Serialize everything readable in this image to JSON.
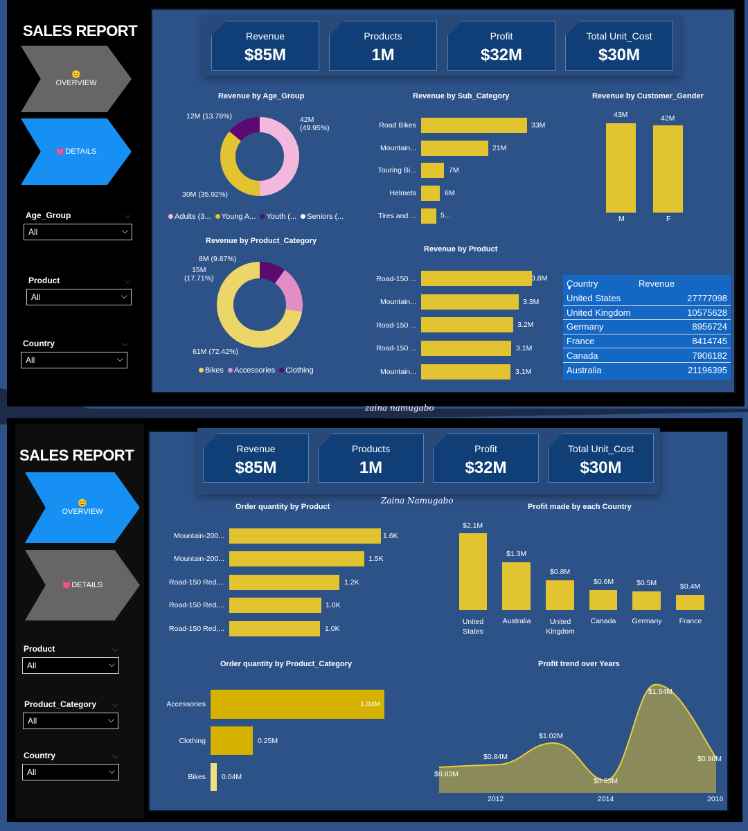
{
  "dashboard_1": {
    "title": "SALES REPORT",
    "nav": {
      "overview": {
        "emoji": "😊",
        "label": "OVERVIEW"
      },
      "details": {
        "emoji": "💓",
        "label": "DETAILS"
      }
    },
    "filters": [
      {
        "label": "Age_Group",
        "value": "All"
      },
      {
        "label": "Product",
        "value": "All"
      },
      {
        "label": "Country",
        "value": "All"
      }
    ],
    "kpis": [
      {
        "label": "Revenue",
        "value": "$85M"
      },
      {
        "label": "Products",
        "value": "1M"
      },
      {
        "label": "Profit",
        "value": "$32M"
      },
      {
        "label": "Total Unit_Cost",
        "value": "$30M"
      }
    ],
    "age_group_chart": {
      "title": "Revenue by Age_Group",
      "labels": {
        "adults": "42M\n(49.95%)",
        "young": "30M (35.92%)",
        "youth": "12M (13.78%)"
      },
      "legend": [
        "Adults (3...",
        "Young A...",
        "Youth (...",
        "Seniors (..."
      ]
    },
    "sub_category_chart": {
      "title": "Revenue by Sub_Category",
      "categories": [
        "Road Bikes",
        "Mountain...",
        "Touring Bi...",
        "Helmets",
        "Tires and ..."
      ],
      "value_labels": [
        "33M",
        "21M",
        "7M",
        "6M",
        "5..."
      ]
    },
    "gender_chart": {
      "title": "Revenue by Customer_Gender",
      "categories": [
        "M",
        "F"
      ],
      "value_labels": [
        "43M",
        "42M"
      ]
    },
    "product_category_chart": {
      "title": "Revenue by Product_Category",
      "labels": {
        "clothing": "8M (9.87%)",
        "accessories": "15M\n(17.71%)",
        "bikes": "61M (72.42%)"
      },
      "legend": [
        "Bikes",
        "Accessories",
        "Clothing"
      ]
    },
    "product_chart": {
      "title": "Revenue by Product",
      "categories": [
        "Road-150 ...",
        "Mountain...",
        "Road-150 ...",
        "Road-150 ...",
        "Mountain..."
      ],
      "value_labels": [
        "3.8M",
        "3.3M",
        "3.2M",
        "3.1M",
        "3.1M"
      ]
    },
    "country_table": {
      "headers": [
        "Country",
        "Revenue"
      ],
      "rows": [
        [
          "United States",
          "27777098"
        ],
        [
          "United Kingdom",
          "10575628"
        ],
        [
          "Germany",
          "8956724"
        ],
        [
          "France",
          "8414745"
        ],
        [
          "Canada",
          "7906182"
        ],
        [
          "Australia",
          "21196395"
        ]
      ]
    },
    "watermark": "zaina namugabo"
  },
  "dashboard_2": {
    "title": "SALES REPORT",
    "nav": {
      "overview": {
        "emoji": "😊",
        "label": "OVERVIEW"
      },
      "details": {
        "emoji": "💓",
        "label": "DETAILS"
      }
    },
    "filters": [
      {
        "label": "Product",
        "value": "All"
      },
      {
        "label": "Product_Category",
        "value": "All"
      },
      {
        "label": "Country",
        "value": "All"
      }
    ],
    "kpis": [
      {
        "label": "Revenue",
        "value": "$85M"
      },
      {
        "label": "Products",
        "value": "1M"
      },
      {
        "label": "Profit",
        "value": "$32M"
      },
      {
        "label": "Total Unit_Cost",
        "value": "$30M"
      }
    ],
    "watermark": "Zaina Namugabo",
    "order_qty_product": {
      "title": "Order quantity by Product",
      "categories": [
        "Mountain-200...",
        "Mountain-200...",
        "Road-150 Red,...",
        "Road-150 Red,...",
        "Road-150 Red,..."
      ],
      "value_labels": [
        "1.6K",
        "1.5K",
        "1.2K",
        "1.0K",
        "1.0K"
      ]
    },
    "profit_by_country": {
      "title": "Profit made by each Country",
      "categories": [
        "United\nStates",
        "Australia",
        "United\nKingdom",
        "Canada",
        "Germany",
        "France"
      ],
      "value_labels": [
        "$2.1M",
        "$1.3M",
        "$0.8M",
        "$0.6M",
        "$0.5M",
        "$0.4M"
      ]
    },
    "order_qty_category": {
      "title": "Order quantity by Product_Category",
      "categories": [
        "Accessories",
        "Clothing",
        "Bikes"
      ],
      "value_labels": [
        "1.04M",
        "0.25M",
        "0.04M"
      ]
    },
    "profit_trend": {
      "title": "Profit trend over Years",
      "x_ticks": [
        "2012",
        "2014",
        "2016"
      ],
      "point_labels": [
        "$0.83M",
        "$0.84M",
        "$1.02M",
        "$0.63M",
        "$1.54M",
        "$0.96M"
      ]
    }
  },
  "chart_data": [
    {
      "type": "pie",
      "title": "Revenue by Age_Group",
      "categories": [
        "Adults",
        "Young Adults",
        "Youth"
      ],
      "values": [
        49.95,
        35.92,
        13.78
      ]
    },
    {
      "type": "bar",
      "title": "Revenue by Sub_Category",
      "categories": [
        "Road Bikes",
        "Mountain...",
        "Touring Bi...",
        "Helmets",
        "Tires and ..."
      ],
      "values": [
        33,
        21,
        7,
        6,
        5
      ]
    },
    {
      "type": "bar",
      "title": "Revenue by Customer_Gender",
      "categories": [
        "M",
        "F"
      ],
      "values": [
        43,
        42
      ]
    },
    {
      "type": "pie",
      "title": "Revenue by Product_Category",
      "categories": [
        "Bikes",
        "Accessories",
        "Clothing"
      ],
      "values": [
        72.42,
        17.71,
        9.87
      ]
    },
    {
      "type": "bar",
      "title": "Revenue by Product",
      "categories": [
        "Road-150 ...",
        "Mountain...",
        "Road-150 ...",
        "Road-150 ...",
        "Mountain..."
      ],
      "values": [
        3.8,
        3.3,
        3.2,
        3.1,
        3.1
      ]
    },
    {
      "type": "table",
      "headers": [
        "Country",
        "Revenue"
      ],
      "rows": [
        [
          "United States",
          27777098
        ],
        [
          "United Kingdom",
          10575628
        ],
        [
          "Germany",
          8956724
        ],
        [
          "France",
          8414745
        ],
        [
          "Canada",
          7906182
        ],
        [
          "Australia",
          21196395
        ]
      ]
    },
    {
      "type": "bar",
      "title": "Order quantity by Product",
      "categories": [
        "Mountain-200...",
        "Mountain-200...",
        "Road-150 Red,...",
        "Road-150 Red,...",
        "Road-150 Red,..."
      ],
      "values": [
        1.6,
        1.5,
        1.2,
        1.0,
        1.0
      ]
    },
    {
      "type": "bar",
      "title": "Profit made by each Country",
      "categories": [
        "United States",
        "Australia",
        "United Kingdom",
        "Canada",
        "Germany",
        "France"
      ],
      "values": [
        2.1,
        1.3,
        0.8,
        0.6,
        0.5,
        0.4
      ]
    },
    {
      "type": "bar",
      "title": "Order quantity by Product_Category",
      "categories": [
        "Accessories",
        "Clothing",
        "Bikes"
      ],
      "values": [
        1.04,
        0.25,
        0.04
      ]
    },
    {
      "type": "area",
      "title": "Profit trend over Years",
      "x": [
        2011,
        2012,
        2013,
        2014,
        2015,
        2016
      ],
      "values": [
        0.83,
        0.84,
        1.02,
        0.63,
        1.54,
        0.96
      ]
    }
  ]
}
